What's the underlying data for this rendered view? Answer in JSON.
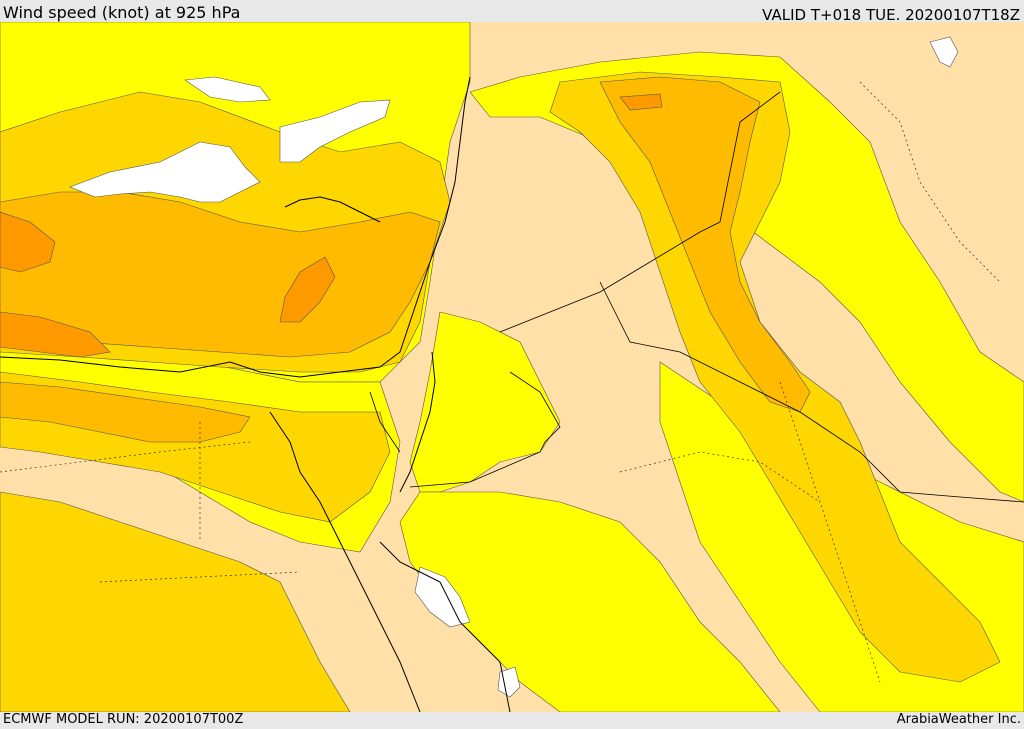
{
  "header": {
    "title": "Wind speed (knot) at 925 hPa",
    "valid": "VALID T+018 TUE. 20200107T18Z"
  },
  "footer": {
    "model_run": "ECMWF MODEL RUN: 20200107T00Z",
    "credit": "ArabiaWeather Inc."
  },
  "map": {
    "colors": {
      "calm": "#ffffff",
      "light": "#ffe0a8",
      "yellow": "#ffff00",
      "gold": "#ffd700",
      "amber": "#ffbb00",
      "orange": "#ff9900",
      "coastline": "#000000"
    }
  }
}
